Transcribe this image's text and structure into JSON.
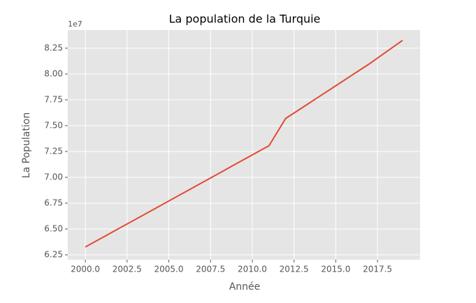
{
  "chart_data": {
    "type": "line",
    "title": "La population de la Turquie",
    "xlabel": "Année",
    "ylabel": "La Population",
    "y_offset_label": "1e7",
    "x": [
      2000,
      2001,
      2002,
      2003,
      2004,
      2005,
      2006,
      2007,
      2008,
      2009,
      2010,
      2011,
      2012,
      2013,
      2014,
      2015,
      2016,
      2017,
      2018,
      2019
    ],
    "series": [
      {
        "name": "La Population",
        "color": "#e24a33",
        "values": [
          63260000,
          64150000,
          65040000,
          65930000,
          66820000,
          67710000,
          68600000,
          69490000,
          70380000,
          71280000,
          72170000,
          73060000,
          75700000,
          76750000,
          77810000,
          78860000,
          79920000,
          80970000,
          82120000,
          83260000
        ]
      }
    ],
    "xlim": [
      1998.95,
      2020.05
    ],
    "xticks": [
      {
        "value": 2000,
        "label": "2000.0"
      },
      {
        "value": 2002.5,
        "label": "2002.5"
      },
      {
        "value": 2005,
        "label": "2005.0"
      },
      {
        "value": 2007.5,
        "label": "2007.5"
      },
      {
        "value": 2010,
        "label": "2010.0"
      },
      {
        "value": 2012.5,
        "label": "2012.5"
      },
      {
        "value": 2015,
        "label": "2015.0"
      },
      {
        "value": 2017.5,
        "label": "2017.5"
      }
    ],
    "ylim": [
      62027000,
      84257000
    ],
    "yticks": [
      {
        "value": 62500000,
        "label": "6.25"
      },
      {
        "value": 65000000,
        "label": "6.50"
      },
      {
        "value": 67500000,
        "label": "6.75"
      },
      {
        "value": 70000000,
        "label": "7.00"
      },
      {
        "value": 72500000,
        "label": "7.25"
      },
      {
        "value": 75000000,
        "label": "7.50"
      },
      {
        "value": 77500000,
        "label": "7.75"
      },
      {
        "value": 80000000,
        "label": "8.00"
      },
      {
        "value": 82500000,
        "label": "8.25"
      }
    ],
    "grid": true
  }
}
